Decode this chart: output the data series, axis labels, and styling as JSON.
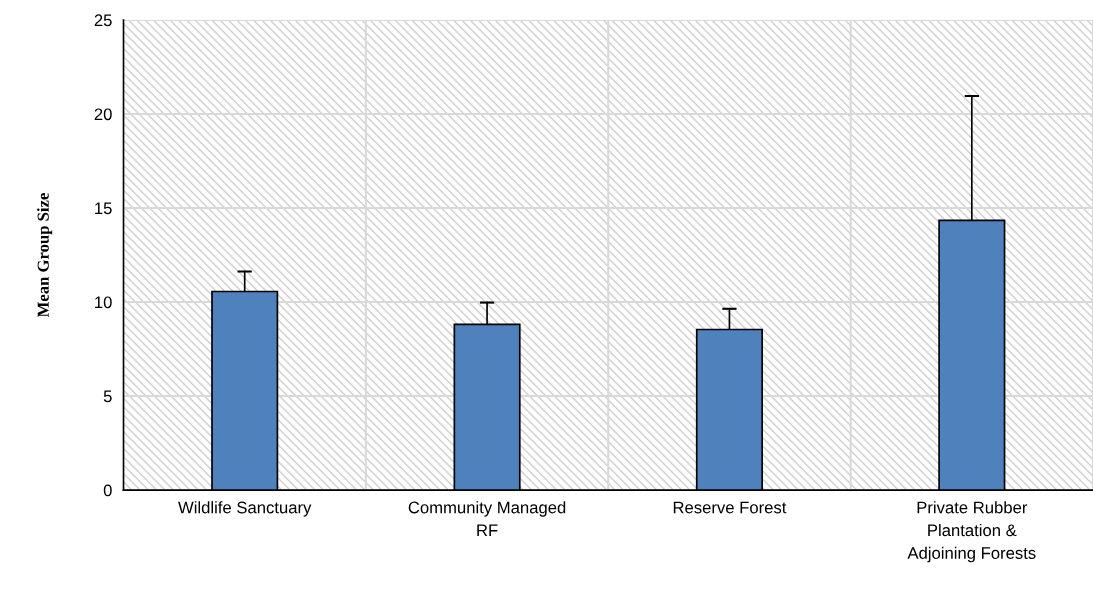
{
  "chart_data": {
    "type": "bar",
    "ylabel": "Mean Group Size",
    "categories": [
      "Wildlife Sanctuary",
      "Community Managed\nRF",
      "Reserve Forest",
      "Private Rubber\nPlantation &\nAdjoining Forests"
    ],
    "values": [
      10.56,
      8.81,
      8.54,
      14.34
    ],
    "errors": [
      [
        10.56,
        11.62
      ],
      [
        8.81,
        9.97
      ],
      [
        8.54,
        9.64
      ],
      [
        14.34,
        20.96
      ]
    ],
    "color": "#4f81bd",
    "ylim": [
      0,
      25
    ],
    "yticks": [
      0,
      5,
      10,
      15,
      20,
      25
    ],
    "grid": true
  }
}
